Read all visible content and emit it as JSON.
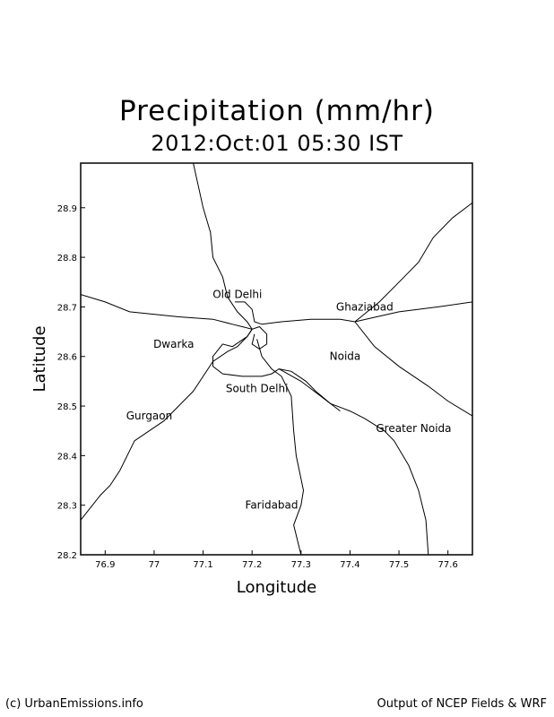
{
  "title": "Precipitation (mm/hr)",
  "subtitle": "2012:Oct:01 05:30 IST",
  "footer": {
    "left": "(c) UrbanEmissions.info",
    "right": "Output of NCEP Fields & WRF"
  },
  "map": {
    "xlabel": "Longitude",
    "ylabel": "Latitude",
    "lon_range": [
      76.85,
      77.65
    ],
    "lat_range": [
      28.2,
      28.99
    ],
    "lon_ticks": [
      {
        "v": 76.9,
        "label": "76.9"
      },
      {
        "v": 77.0,
        "label": "77"
      },
      {
        "v": 77.1,
        "label": "77.1"
      },
      {
        "v": 77.2,
        "label": "77.2"
      },
      {
        "v": 77.3,
        "label": "77.3"
      },
      {
        "v": 77.4,
        "label": "77.4"
      },
      {
        "v": 77.5,
        "label": "77.5"
      },
      {
        "v": 77.6,
        "label": "77.6"
      }
    ],
    "lat_ticks": [
      {
        "v": 28.2,
        "label": "28.2"
      },
      {
        "v": 28.3,
        "label": "28.3"
      },
      {
        "v": 28.4,
        "label": "28.4"
      },
      {
        "v": 28.5,
        "label": "28.5"
      },
      {
        "v": 28.6,
        "label": "28.6"
      },
      {
        "v": 28.7,
        "label": "28.7"
      },
      {
        "v": 28.8,
        "label": "28.8"
      },
      {
        "v": 28.9,
        "label": "28.9"
      }
    ],
    "places": [
      {
        "name": "Old Delhi",
        "lon": 77.17,
        "lat": 28.725
      },
      {
        "name": "Ghaziabad",
        "lon": 77.43,
        "lat": 28.7
      },
      {
        "name": "Dwarka",
        "lon": 77.04,
        "lat": 28.625
      },
      {
        "name": "Noida",
        "lon": 77.39,
        "lat": 28.6
      },
      {
        "name": "South Delhi",
        "lon": 77.21,
        "lat": 28.535
      },
      {
        "name": "Gurgaon",
        "lon": 76.99,
        "lat": 28.48
      },
      {
        "name": "Greater Noida",
        "lon": 77.53,
        "lat": 28.455
      },
      {
        "name": "Faridabad",
        "lon": 77.24,
        "lat": 28.3
      }
    ],
    "roads": [
      [
        [
          77.08,
          28.99
        ],
        [
          77.1,
          28.9
        ],
        [
          77.115,
          28.85
        ],
        [
          77.12,
          28.8
        ],
        [
          77.14,
          28.76
        ],
        [
          77.15,
          28.72
        ],
        [
          77.17,
          28.69
        ],
        [
          77.19,
          28.67
        ],
        [
          77.2,
          28.655
        ]
      ],
      [
        [
          76.85,
          28.725
        ],
        [
          76.9,
          28.71
        ],
        [
          76.95,
          28.69
        ],
        [
          77.05,
          28.68
        ],
        [
          77.12,
          28.675
        ],
        [
          77.16,
          28.665
        ],
        [
          77.18,
          28.66
        ],
        [
          77.2,
          28.655
        ]
      ],
      [
        [
          77.165,
          28.71
        ],
        [
          77.185,
          28.71
        ],
        [
          77.2,
          28.695
        ],
        [
          77.205,
          28.67
        ],
        [
          77.22,
          28.665
        ],
        [
          77.26,
          28.67
        ],
        [
          77.32,
          28.675
        ],
        [
          77.38,
          28.675
        ],
        [
          77.41,
          28.67
        ]
      ],
      [
        [
          77.41,
          28.67
        ],
        [
          77.5,
          28.69
        ],
        [
          77.58,
          28.7
        ],
        [
          77.65,
          28.71
        ]
      ],
      [
        [
          77.41,
          28.67
        ],
        [
          77.46,
          28.71
        ],
        [
          77.5,
          28.75
        ],
        [
          77.54,
          28.79
        ],
        [
          77.57,
          28.84
        ],
        [
          77.61,
          28.88
        ],
        [
          77.65,
          28.91
        ]
      ],
      [
        [
          77.41,
          28.67
        ],
        [
          77.45,
          28.62
        ],
        [
          77.5,
          28.58
        ],
        [
          77.56,
          28.54
        ],
        [
          77.6,
          28.51
        ],
        [
          77.65,
          28.48
        ]
      ],
      [
        [
          77.2,
          28.655
        ],
        [
          77.19,
          28.64
        ],
        [
          77.175,
          28.63
        ],
        [
          77.16,
          28.62
        ],
        [
          77.14,
          28.625
        ],
        [
          77.12,
          28.6
        ],
        [
          77.12,
          28.58
        ],
        [
          77.14,
          28.565
        ],
        [
          77.18,
          28.56
        ],
        [
          77.22,
          28.56
        ],
        [
          77.24,
          28.565
        ],
        [
          77.255,
          28.575
        ],
        [
          77.28,
          28.57
        ],
        [
          77.31,
          28.55
        ],
        [
          77.33,
          28.53
        ],
        [
          77.36,
          28.505
        ],
        [
          77.4,
          28.49
        ],
        [
          77.43,
          28.475
        ],
        [
          77.47,
          28.45
        ],
        [
          77.49,
          28.43
        ],
        [
          77.52,
          28.38
        ],
        [
          77.54,
          28.33
        ],
        [
          77.555,
          28.27
        ],
        [
          77.56,
          28.2
        ]
      ],
      [
        [
          77.2,
          28.655
        ],
        [
          77.19,
          28.64
        ],
        [
          77.17,
          28.62
        ],
        [
          77.15,
          28.61
        ],
        [
          77.12,
          28.59
        ],
        [
          77.1,
          28.56
        ],
        [
          77.08,
          28.53
        ],
        [
          77.06,
          28.51
        ],
        [
          77.02,
          28.47
        ],
        [
          76.99,
          28.45
        ],
        [
          76.96,
          28.43
        ],
        [
          76.93,
          28.37
        ],
        [
          76.91,
          28.34
        ],
        [
          76.89,
          28.32
        ],
        [
          76.85,
          28.27
        ]
      ],
      [
        [
          77.21,
          28.635
        ],
        [
          77.22,
          28.6
        ],
        [
          77.24,
          28.575
        ],
        [
          77.26,
          28.56
        ],
        [
          77.28,
          28.52
        ],
        [
          77.285,
          28.45
        ],
        [
          77.29,
          28.4
        ],
        [
          77.305,
          28.33
        ],
        [
          77.3,
          28.3
        ],
        [
          77.285,
          28.26
        ],
        [
          77.3,
          28.2
        ]
      ],
      [
        [
          77.2,
          28.655
        ],
        [
          77.215,
          28.66
        ],
        [
          77.23,
          28.645
        ],
        [
          77.23,
          28.625
        ],
        [
          77.215,
          28.615
        ],
        [
          77.2,
          28.625
        ],
        [
          77.205,
          28.645
        ]
      ],
      [
        [
          77.255,
          28.575
        ],
        [
          77.3,
          28.55
        ],
        [
          77.34,
          28.52
        ],
        [
          77.38,
          28.49
        ]
      ]
    ]
  }
}
